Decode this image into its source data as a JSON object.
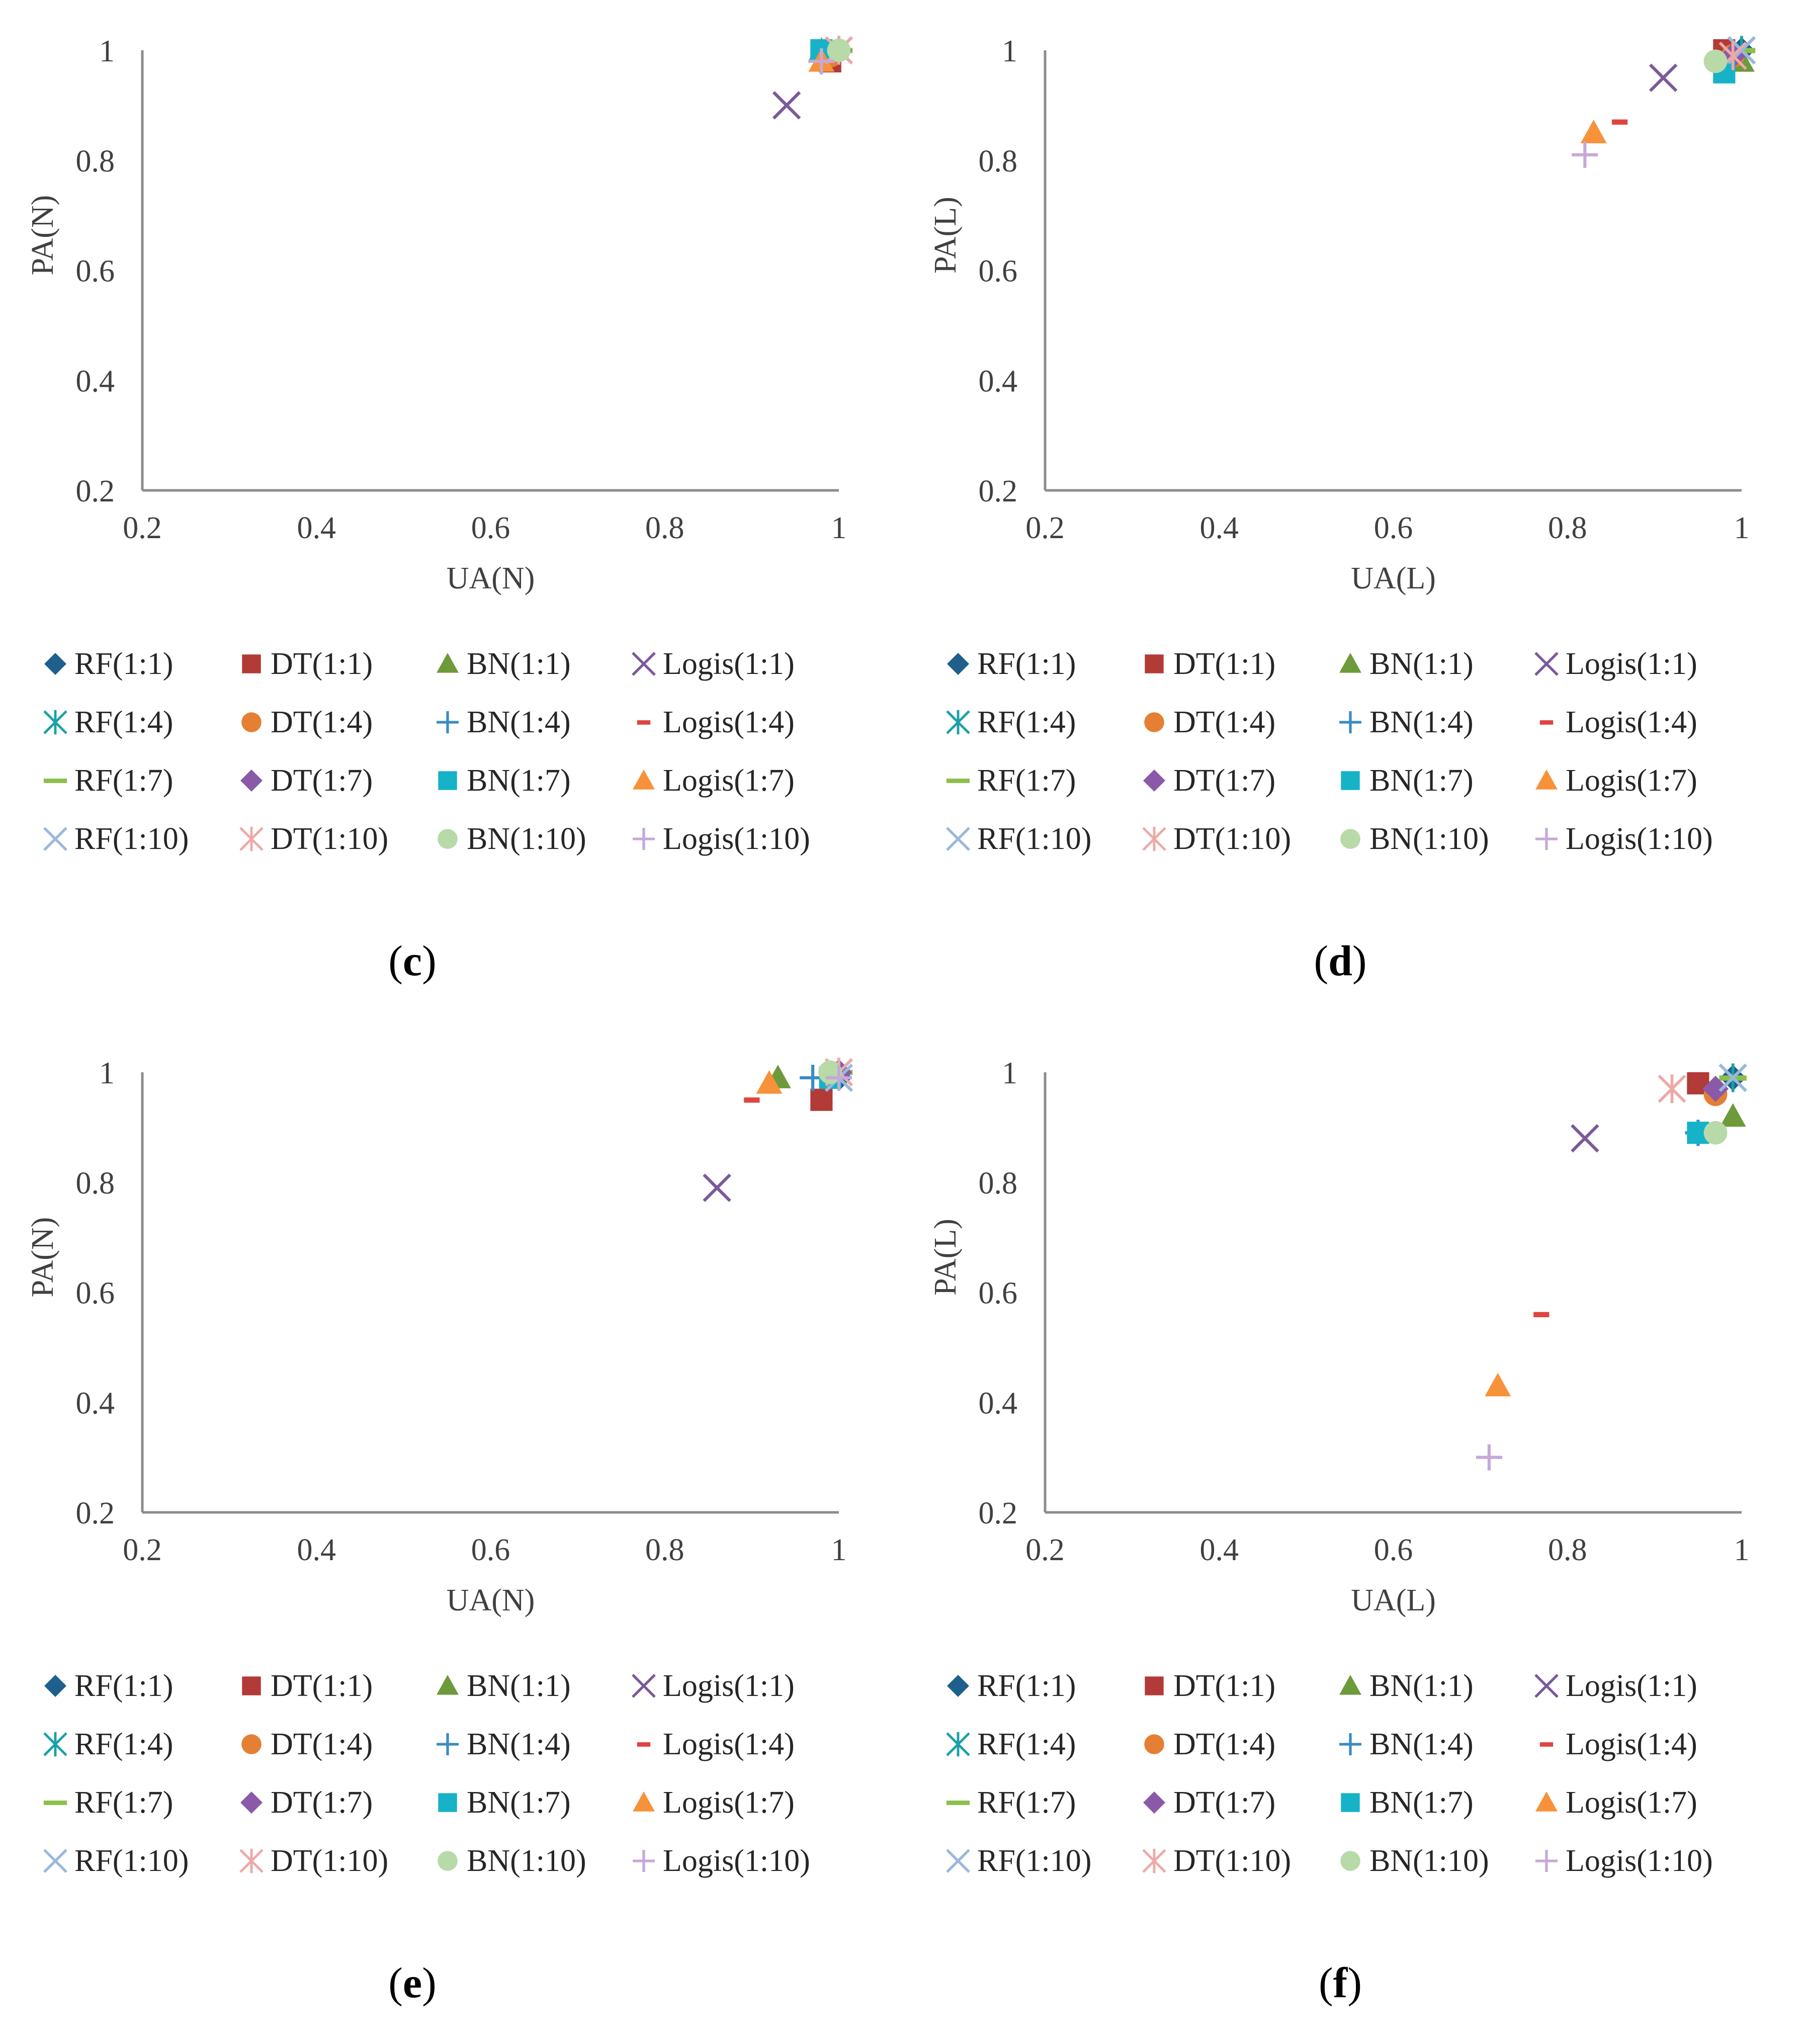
{
  "legend": {
    "entries": [
      {
        "key": "RF(1:1)",
        "label": "RF(1:1)",
        "marker": "diamond",
        "color": "#1f5f8b"
      },
      {
        "key": "DT(1:1)",
        "label": "DT(1:1)",
        "marker": "square",
        "color": "#b23a37"
      },
      {
        "key": "BN(1:1)",
        "label": "BN(1:1)",
        "marker": "triangle",
        "color": "#6d9a3a"
      },
      {
        "key": "Logis(1:1)",
        "label": "Logis(1:1)",
        "marker": "x",
        "color": "#7a5a9a"
      },
      {
        "key": "RF(1:4)",
        "label": "RF(1:4)",
        "marker": "star",
        "color": "#1aa0a8"
      },
      {
        "key": "DT(1:4)",
        "label": "DT(1:4)",
        "marker": "circle",
        "color": "#e57f33"
      },
      {
        "key": "BN(1:4)",
        "label": "BN(1:4)",
        "marker": "plus",
        "color": "#3a8cc4"
      },
      {
        "key": "Logis(1:4)",
        "label": "Logis(1:4)",
        "marker": "dash",
        "color": "#e0443e"
      },
      {
        "key": "RF(1:7)",
        "label": "RF(1:7)",
        "marker": "dash-long",
        "color": "#8cc04a"
      },
      {
        "key": "DT(1:7)",
        "label": "DT(1:7)",
        "marker": "diamond",
        "color": "#8a5aa8"
      },
      {
        "key": "BN(1:7)",
        "label": "BN(1:7)",
        "marker": "square",
        "color": "#16b2c8"
      },
      {
        "key": "Logis(1:7)",
        "label": "Logis(1:7)",
        "marker": "triangle",
        "color": "#f7923a"
      },
      {
        "key": "RF(1:10)",
        "label": "RF(1:10)",
        "marker": "x",
        "color": "#9ab8dc"
      },
      {
        "key": "DT(1:10)",
        "label": "DT(1:10)",
        "marker": "star",
        "color": "#eda9a6"
      },
      {
        "key": "BN(1:10)",
        "label": "BN(1:10)",
        "marker": "circle",
        "color": "#b8d9a8"
      },
      {
        "key": "Logis(1:10)",
        "label": "Logis(1:10)",
        "marker": "plus",
        "color": "#c6a8d8"
      }
    ]
  },
  "chart_data": [
    {
      "id": "c",
      "label": "c",
      "type": "scatter",
      "xlabel": "UA(N)",
      "ylabel": "PA(N)",
      "xlim": [
        0.2,
        1
      ],
      "ylim": [
        0.2,
        1
      ],
      "xticks": [
        "0.2",
        "0.4",
        "0.6",
        "0.8",
        "1"
      ],
      "yticks": [
        "0.2",
        "0.4",
        "0.6",
        "0.8",
        "1"
      ],
      "points": [
        {
          "series": "RF(1:1)",
          "x": 0.99,
          "y": 0.99
        },
        {
          "series": "DT(1:1)",
          "x": 0.99,
          "y": 0.98
        },
        {
          "series": "BN(1:1)",
          "x": 0.98,
          "y": 1.0
        },
        {
          "series": "Logis(1:1)",
          "x": 0.94,
          "y": 0.9
        },
        {
          "series": "RF(1:4)",
          "x": 1.0,
          "y": 1.0
        },
        {
          "series": "DT(1:4)",
          "x": 0.99,
          "y": 0.99
        },
        {
          "series": "BN(1:4)",
          "x": 0.98,
          "y": 0.98
        },
        {
          "series": "Logis(1:4)",
          "x": 0.98,
          "y": 0.98
        },
        {
          "series": "RF(1:7)",
          "x": 1.0,
          "y": 1.0
        },
        {
          "series": "DT(1:7)",
          "x": 1.0,
          "y": 1.0
        },
        {
          "series": "BN(1:7)",
          "x": 0.98,
          "y": 1.0
        },
        {
          "series": "Logis(1:7)",
          "x": 0.98,
          "y": 0.98
        },
        {
          "series": "RF(1:10)",
          "x": 1.0,
          "y": 1.0
        },
        {
          "series": "DT(1:10)",
          "x": 1.0,
          "y": 1.0
        },
        {
          "series": "BN(1:10)",
          "x": 1.0,
          "y": 1.0
        },
        {
          "series": "Logis(1:10)",
          "x": 0.98,
          "y": 0.98
        }
      ]
    },
    {
      "id": "d",
      "label": "d",
      "type": "scatter",
      "xlabel": "UA(L)",
      "ylabel": "PA(L)",
      "xlim": [
        0.2,
        1
      ],
      "ylim": [
        0.2,
        1
      ],
      "xticks": [
        "0.2",
        "0.4",
        "0.6",
        "0.8",
        "1"
      ],
      "yticks": [
        "0.2",
        "0.4",
        "0.6",
        "0.8",
        "1"
      ],
      "points": [
        {
          "series": "RF(1:1)",
          "x": 1.0,
          "y": 1.0
        },
        {
          "series": "DT(1:1)",
          "x": 0.98,
          "y": 1.0
        },
        {
          "series": "BN(1:1)",
          "x": 1.0,
          "y": 0.98
        },
        {
          "series": "Logis(1:1)",
          "x": 0.91,
          "y": 0.95
        },
        {
          "series": "RF(1:4)",
          "x": 1.0,
          "y": 1.0
        },
        {
          "series": "DT(1:4)",
          "x": 0.99,
          "y": 0.99
        },
        {
          "series": "BN(1:4)",
          "x": 0.99,
          "y": 0.99
        },
        {
          "series": "Logis(1:4)",
          "x": 0.86,
          "y": 0.87
        },
        {
          "series": "RF(1:7)",
          "x": 1.0,
          "y": 1.0
        },
        {
          "series": "DT(1:7)",
          "x": 0.99,
          "y": 0.99
        },
        {
          "series": "BN(1:7)",
          "x": 0.98,
          "y": 0.96
        },
        {
          "series": "Logis(1:7)",
          "x": 0.83,
          "y": 0.85
        },
        {
          "series": "RF(1:10)",
          "x": 1.0,
          "y": 1.0
        },
        {
          "series": "DT(1:10)",
          "x": 0.99,
          "y": 0.99
        },
        {
          "series": "BN(1:10)",
          "x": 0.97,
          "y": 0.98
        },
        {
          "series": "Logis(1:10)",
          "x": 0.82,
          "y": 0.81
        }
      ]
    },
    {
      "id": "e",
      "label": "e",
      "type": "scatter",
      "xlabel": "UA(N)",
      "ylabel": "PA(N)",
      "xlim": [
        0.2,
        1
      ],
      "ylim": [
        0.2,
        1
      ],
      "xticks": [
        "0.2",
        "0.4",
        "0.6",
        "0.8",
        "1"
      ],
      "yticks": [
        "0.2",
        "0.4",
        "0.6",
        "0.8",
        "1"
      ],
      "points": [
        {
          "series": "RF(1:1)",
          "x": 1.0,
          "y": 0.99
        },
        {
          "series": "DT(1:1)",
          "x": 0.98,
          "y": 0.95
        },
        {
          "series": "BN(1:1)",
          "x": 0.93,
          "y": 0.99
        },
        {
          "series": "Logis(1:1)",
          "x": 0.86,
          "y": 0.79
        },
        {
          "series": "RF(1:4)",
          "x": 1.0,
          "y": 1.0
        },
        {
          "series": "DT(1:4)",
          "x": 0.99,
          "y": 1.0
        },
        {
          "series": "BN(1:4)",
          "x": 0.97,
          "y": 0.99
        },
        {
          "series": "Logis(1:4)",
          "x": 0.9,
          "y": 0.95
        },
        {
          "series": "RF(1:7)",
          "x": 1.0,
          "y": 1.0
        },
        {
          "series": "DT(1:7)",
          "x": 1.0,
          "y": 1.0
        },
        {
          "series": "BN(1:7)",
          "x": 0.99,
          "y": 0.99
        },
        {
          "series": "Logis(1:7)",
          "x": 0.92,
          "y": 0.98
        },
        {
          "series": "RF(1:10)",
          "x": 1.0,
          "y": 0.99
        },
        {
          "series": "DT(1:10)",
          "x": 1.0,
          "y": 1.0
        },
        {
          "series": "BN(1:10)",
          "x": 0.99,
          "y": 1.0
        },
        {
          "series": "Logis(1:10)",
          "x": 1.0,
          "y": 0.99
        }
      ]
    },
    {
      "id": "f",
      "label": "f",
      "type": "scatter",
      "xlabel": "UA(L)",
      "ylabel": "PA(L)",
      "xlim": [
        0.2,
        1
      ],
      "ylim": [
        0.2,
        1
      ],
      "xticks": [
        "0.2",
        "0.4",
        "0.6",
        "0.8",
        "1"
      ],
      "yticks": [
        "0.2",
        "0.4",
        "0.6",
        "0.8",
        "1"
      ],
      "points": [
        {
          "series": "RF(1:1)",
          "x": 0.99,
          "y": 0.99
        },
        {
          "series": "DT(1:1)",
          "x": 0.95,
          "y": 0.98
        },
        {
          "series": "BN(1:1)",
          "x": 0.99,
          "y": 0.92
        },
        {
          "series": "Logis(1:1)",
          "x": 0.82,
          "y": 0.88
        },
        {
          "series": "RF(1:4)",
          "x": 0.99,
          "y": 0.99
        },
        {
          "series": "DT(1:4)",
          "x": 0.97,
          "y": 0.96
        },
        {
          "series": "BN(1:4)",
          "x": 0.95,
          "y": 0.89
        },
        {
          "series": "Logis(1:4)",
          "x": 0.77,
          "y": 0.56
        },
        {
          "series": "RF(1:7)",
          "x": 0.99,
          "y": 0.99
        },
        {
          "series": "DT(1:7)",
          "x": 0.97,
          "y": 0.97
        },
        {
          "series": "BN(1:7)",
          "x": 0.95,
          "y": 0.89
        },
        {
          "series": "Logis(1:7)",
          "x": 0.72,
          "y": 0.43
        },
        {
          "series": "RF(1:10)",
          "x": 0.99,
          "y": 0.99
        },
        {
          "series": "DT(1:10)",
          "x": 0.92,
          "y": 0.97
        },
        {
          "series": "BN(1:10)",
          "x": 0.97,
          "y": 0.89
        },
        {
          "series": "Logis(1:10)",
          "x": 0.71,
          "y": 0.3
        }
      ]
    }
  ]
}
